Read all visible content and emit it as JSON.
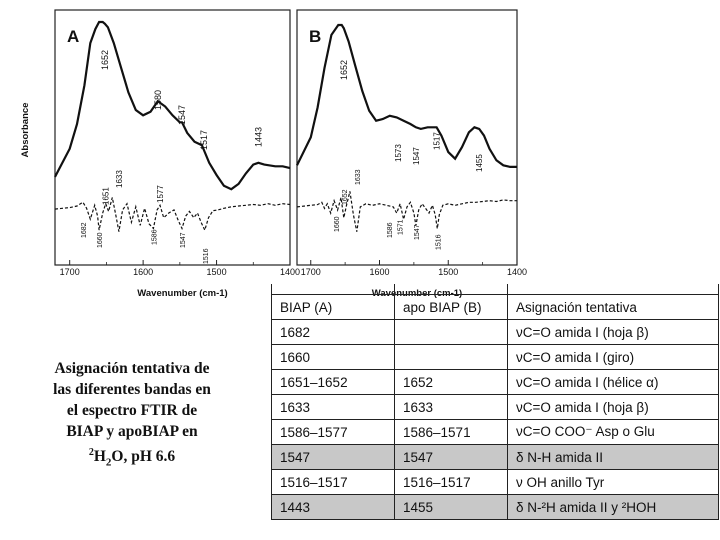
{
  "chart_data": [
    {
      "type": "line",
      "panel_label": "A",
      "xlabel": "Wavenumber (cm-1)",
      "ylabel": "Absorbance",
      "xlim": [
        1720,
        1400
      ],
      "x_reversed": true,
      "x_ticks": [
        1700,
        1600,
        1500,
        1400
      ],
      "series": [
        {
          "style": "solid",
          "x": [
            1720,
            1700,
            1690,
            1680,
            1672,
            1665,
            1660,
            1655,
            1652,
            1648,
            1640,
            1630,
            1620,
            1610,
            1600,
            1590,
            1580,
            1570,
            1560,
            1550,
            1547,
            1540,
            1530,
            1520,
            1517,
            1510,
            1500,
            1490,
            1480,
            1470,
            1460,
            1450,
            1443,
            1435,
            1420,
            1410,
            1400
          ],
          "y": [
            0.12,
            0.28,
            0.42,
            0.64,
            0.88,
            0.96,
            1.0,
            1.0,
            0.99,
            0.97,
            0.88,
            0.74,
            0.6,
            0.5,
            0.47,
            0.49,
            0.55,
            0.52,
            0.47,
            0.43,
            0.43,
            0.37,
            0.32,
            0.3,
            0.27,
            0.2,
            0.13,
            0.07,
            0.05,
            0.08,
            0.14,
            0.19,
            0.2,
            0.19,
            0.18,
            0.18,
            0.17
          ]
        },
        {
          "style": "dashed",
          "x": [
            1720,
            1710,
            1700,
            1690,
            1682,
            1677,
            1672,
            1666,
            1662,
            1660,
            1655,
            1651,
            1647,
            1642,
            1637,
            1633,
            1628,
            1622,
            1616,
            1610,
            1604,
            1598,
            1592,
            1586,
            1581,
            1577,
            1572,
            1565,
            1558,
            1552,
            1547,
            1542,
            1537,
            1531,
            1526,
            1521,
            1516,
            1511,
            1505,
            1498,
            1490,
            1480,
            1470,
            1460,
            1450,
            1440,
            1430,
            1420,
            1410,
            1400
          ],
          "y": [
            0.025,
            0.03,
            0.035,
            0.045,
            0.07,
            0.03,
            -0.04,
            0.05,
            -0.02,
            -0.11,
            0.0,
            0.06,
            0.01,
            0.1,
            -0.02,
            -0.12,
            0.02,
            0.06,
            -0.06,
            0.04,
            -0.08,
            0.03,
            -0.07,
            -0.1,
            0.02,
            0.05,
            -0.03,
            0.0,
            0.02,
            -0.05,
            -0.1,
            -0.02,
            0.01,
            -0.03,
            0.0,
            -0.06,
            -0.11,
            -0.03,
            0.015,
            0.02,
            0.03,
            0.04,
            0.045,
            0.05,
            0.055,
            0.05,
            0.06,
            0.05,
            0.06,
            0.055
          ]
        }
      ],
      "peak_labels": [
        "1652",
        "1580",
        "1547",
        "1517",
        "1443",
        "1682",
        "1660",
        "1651",
        "1633",
        "1586",
        "1577",
        "1547",
        "1516"
      ]
    },
    {
      "type": "line",
      "panel_label": "B",
      "xlabel": "Wavenumber (cm-1)",
      "xlim": [
        1720,
        1400
      ],
      "x_reversed": true,
      "x_ticks": [
        1700,
        1600,
        1500,
        1400
      ],
      "series": [
        {
          "style": "solid",
          "x": [
            1720,
            1700,
            1690,
            1680,
            1670,
            1660,
            1655,
            1652,
            1645,
            1635,
            1625,
            1615,
            1605,
            1595,
            1585,
            1575,
            1565,
            1555,
            1547,
            1540,
            1530,
            1520,
            1517,
            1510,
            1500,
            1490,
            1480,
            1470,
            1462,
            1455,
            1448,
            1440,
            1430,
            1420,
            1410,
            1400
          ],
          "y": [
            0.15,
            0.32,
            0.5,
            0.74,
            0.94,
            1.0,
            1.0,
            0.98,
            0.9,
            0.75,
            0.6,
            0.48,
            0.42,
            0.43,
            0.45,
            0.44,
            0.42,
            0.4,
            0.38,
            0.37,
            0.38,
            0.38,
            0.38,
            0.33,
            0.23,
            0.19,
            0.26,
            0.35,
            0.38,
            0.37,
            0.33,
            0.25,
            0.18,
            0.15,
            0.14,
            0.14
          ]
        },
        {
          "style": "dashed",
          "x": [
            1720,
            1710,
            1700,
            1690,
            1684,
            1680,
            1676,
            1671,
            1666,
            1661,
            1656,
            1652,
            1648,
            1643,
            1638,
            1633,
            1628,
            1620,
            1610,
            1600,
            1590,
            1580,
            1575,
            1570,
            1565,
            1560,
            1555,
            1550,
            1547,
            1543,
            1538,
            1533,
            1528,
            1523,
            1519,
            1516,
            1513,
            1508,
            1500,
            1490,
            1480,
            1470,
            1460,
            1450,
            1440,
            1430,
            1420,
            1410,
            1400
          ],
          "y": [
            0.02,
            0.025,
            0.03,
            0.035,
            0.05,
            0.01,
            0.04,
            -0.02,
            0.06,
            0.0,
            0.08,
            -0.05,
            0.03,
            0.12,
            -0.03,
            -0.14,
            0.02,
            0.04,
            0.03,
            0.04,
            0.03,
            0.02,
            -0.02,
            0.04,
            -0.06,
            0.02,
            0.05,
            -0.02,
            -0.1,
            0.0,
            0.04,
            0.01,
            -0.02,
            0.03,
            -0.03,
            -0.12,
            -0.03,
            0.03,
            0.04,
            0.03,
            0.04,
            0.05,
            0.05,
            0.055,
            0.06,
            0.055,
            0.065,
            0.06,
            0.06
          ]
        }
      ],
      "peak_labels": [
        "1652",
        "1573",
        "1547",
        "1517",
        "1455",
        "1660",
        "1652",
        "1633",
        "1586",
        "1571",
        "1547",
        "1516"
      ]
    }
  ],
  "caption": {
    "line1": "Asignación tentativa de",
    "line2": "las diferentes bandas en",
    "line3": "el espectro FTIR de",
    "line4": "BIAP y apoBIAP en",
    "line5_sup": "2",
    "line5_a": "H",
    "line5_sub": "2",
    "line5_b": "O, pH 6.6"
  },
  "table": {
    "header": [
      "BIAP (A)",
      "apo BIAP (B)",
      "Asignación tentativa"
    ],
    "rows": [
      {
        "c1": "1682",
        "c2": "",
        "c3": "νC=O amida I (hoja β)",
        "shaded": false
      },
      {
        "c1": "1660",
        "c2": "",
        "c3": "νC=O amida I (giro)",
        "shaded": false
      },
      {
        "c1": "1651–1652",
        "c2": "1652",
        "c3": "νC=O amida I (hélice α)",
        "shaded": false
      },
      {
        "c1": "1633",
        "c2": "1633",
        "c3": "νC=O amida I (hoja β)",
        "shaded": false
      },
      {
        "c1": "1586–1577",
        "c2": "1586–1571",
        "c3": "νC=O COO⁻ Asp o Glu",
        "shaded": false
      },
      {
        "c1": "1547",
        "c2": "1547",
        "c3": "δ N-H amida II",
        "shaded": true
      },
      {
        "c1": "1516–1517",
        "c2": "1516–1517",
        "c3": "ν OH anillo Tyr",
        "shaded": false
      },
      {
        "c1": "1443",
        "c2": "1455",
        "c3": "δ N-²H amida II y ²HOH",
        "shaded": true
      }
    ]
  }
}
